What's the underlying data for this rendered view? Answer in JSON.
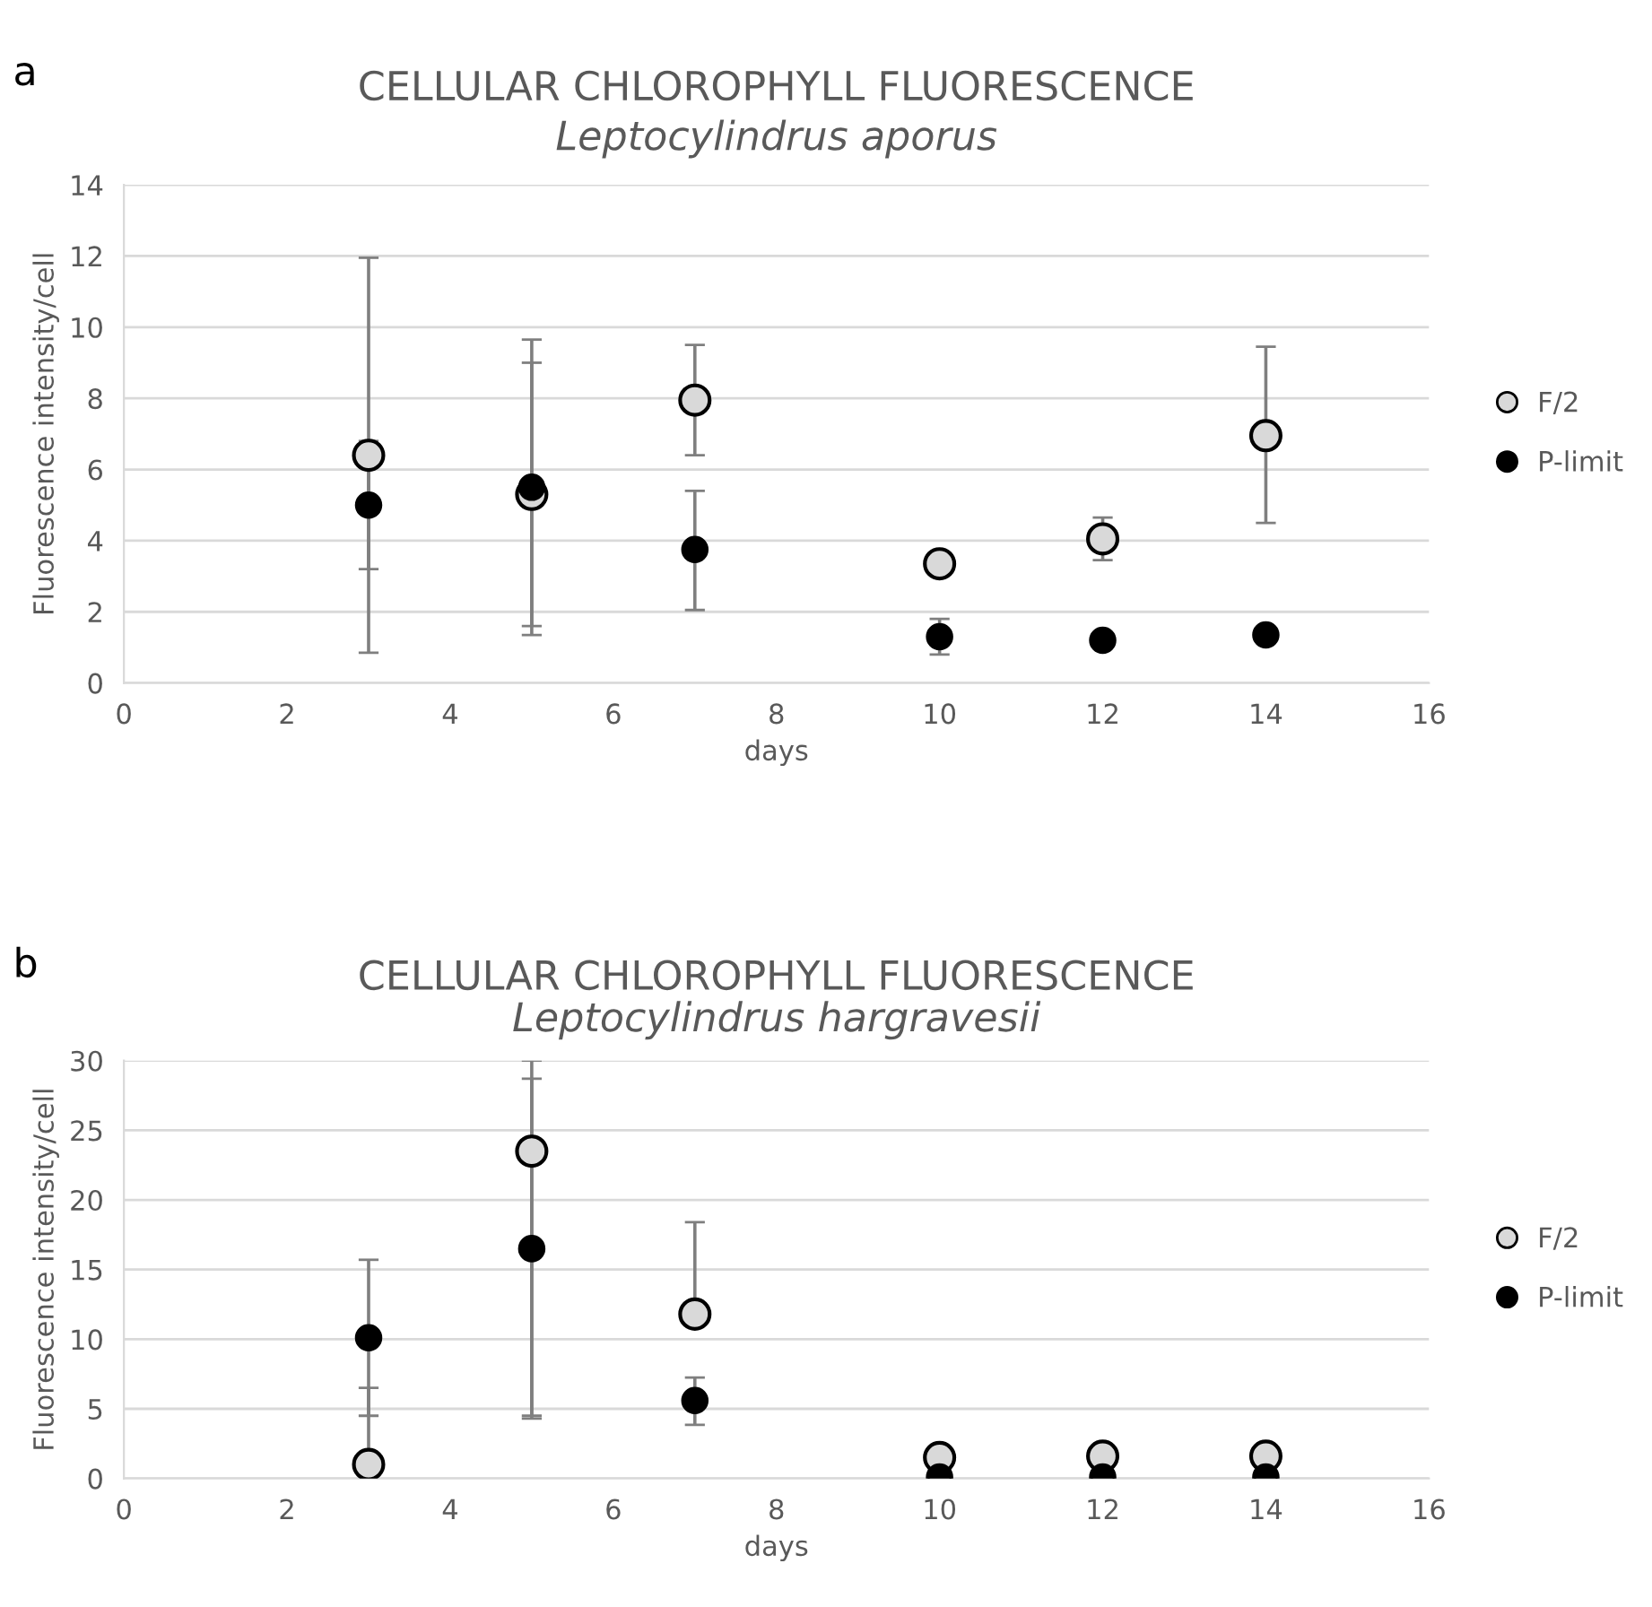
{
  "chart_data": [
    {
      "type": "scatter",
      "title": "CELLULAR CHLOROPHYLL FLUORESCENCE",
      "subtitle": "Leptocylindrus aporus",
      "xlabel": "days",
      "ylabel": "Fluorescence intensity/cell",
      "annotations": [
        "a"
      ],
      "x": [
        3,
        5,
        7,
        10,
        12,
        14
      ],
      "series": [
        {
          "name": "F/2",
          "color": "#d9d9d9",
          "values": [
            6.4,
            5.3,
            7.95,
            3.35,
            4.05,
            6.95
          ],
          "errors": [
            [
              0.85,
              11.95
            ],
            [
              1.6,
              9.0
            ],
            [
              6.4,
              9.5
            ],
            null,
            [
              3.45,
              4.65
            ],
            [
              4.5,
              9.45
            ]
          ]
        },
        {
          "name": "P-limit",
          "color": "#000000",
          "values": [
            5.0,
            5.5,
            3.75,
            1.3,
            1.2,
            1.35
          ],
          "errors": [
            [
              3.2,
              6.8
            ],
            [
              1.35,
              9.65
            ],
            [
              2.05,
              5.4
            ],
            [
              0.8,
              1.8
            ],
            null,
            null
          ]
        }
      ],
      "xlim": [
        0,
        16
      ],
      "xticks": [
        0,
        2,
        4,
        6,
        8,
        10,
        12,
        14,
        16
      ],
      "ylim": [
        0,
        14
      ],
      "yticks": [
        0,
        2,
        4,
        6,
        8,
        10,
        12,
        14
      ],
      "grid": "y",
      "legend": "right",
      "marker": "circle"
    },
    {
      "type": "scatter",
      "title": "CELLULAR CHLOROPHYLL FLUORESCENCE",
      "subtitle": "Leptocylindrus hargravesii",
      "xlabel": "days",
      "ylabel": "Fluorescence intensity/cell",
      "annotations": [
        "b"
      ],
      "x": [
        3,
        5,
        7,
        10,
        12,
        14
      ],
      "series": [
        {
          "name": "F/2",
          "color": "#d9d9d9",
          "values": [
            1.0,
            23.5,
            11.8,
            1.5,
            1.6,
            1.6
          ],
          "errors": [
            [
              0,
              6.5
            ],
            [
              4.5,
              30
            ],
            [
              11.8,
              18.4
            ],
            null,
            null,
            null
          ]
        },
        {
          "name": "P-limit",
          "color": "#000000",
          "values": [
            10.1,
            16.5,
            5.6,
            0.1,
            0.1,
            0.1
          ],
          "errors": [
            [
              4.5,
              15.7
            ],
            [
              4.3,
              28.7
            ],
            [
              3.85,
              7.25
            ],
            null,
            null,
            null
          ]
        }
      ],
      "xlim": [
        0,
        16
      ],
      "xticks": [
        0,
        2,
        4,
        6,
        8,
        10,
        12,
        14,
        16
      ],
      "ylim": [
        0,
        30
      ],
      "yticks": [
        0,
        5,
        10,
        15,
        20,
        25,
        30
      ],
      "grid": "y",
      "legend": "right",
      "marker": "circle"
    }
  ]
}
